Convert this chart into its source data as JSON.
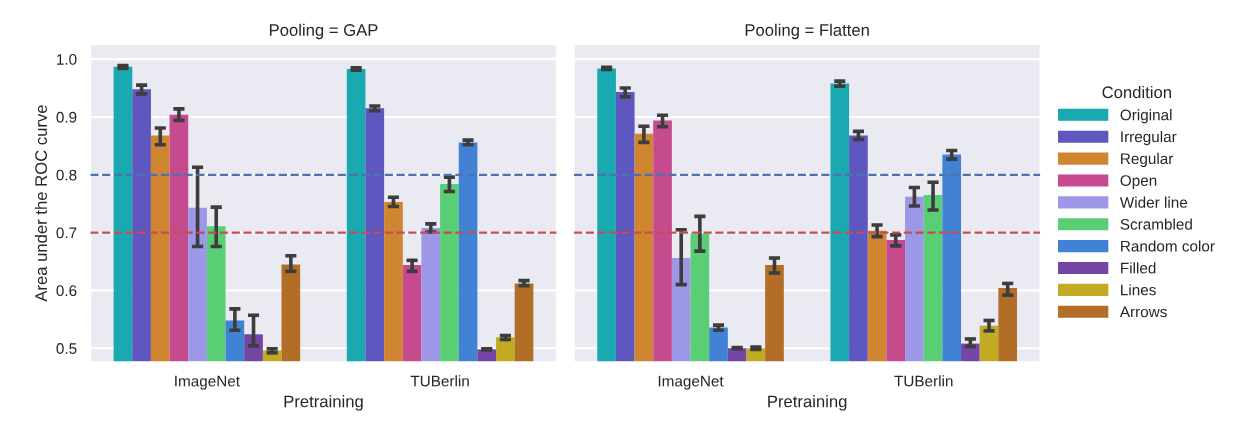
{
  "chart_data": [
    {
      "type": "bar",
      "title": "Pooling = GAP",
      "xlabel": "Pretraining",
      "ylabel": "Area under the ROC curve",
      "categories": [
        "ImageNet",
        "TUBerlin"
      ],
      "ylim": [
        0.476,
        1.026
      ],
      "yticks": [
        {
          "value": 0.5,
          "label": "0.5"
        },
        {
          "value": 0.6,
          "label": "0.6"
        },
        {
          "value": 0.7,
          "label": "0.7"
        },
        {
          "value": 0.8,
          "label": "0.8"
        },
        {
          "value": 0.9,
          "label": "0.9"
        },
        {
          "value": 1.0,
          "label": "1.0"
        }
      ],
      "grid": "y",
      "legend": false,
      "ref_lines": [
        {
          "axis": "y",
          "value": 0.8,
          "color": "#4c72b0",
          "line_style": "dashed"
        },
        {
          "axis": "y",
          "value": 0.7,
          "color": "#c44e52",
          "line_style": "dashed"
        }
      ],
      "series": [
        {
          "color": "#1aa9b0",
          "values": [
            0.987,
            0.983
          ],
          "errors": [
            [
              0.984,
              0.989
            ],
            [
              0.981,
              0.985
            ]
          ]
        },
        {
          "color": "#5f57c0",
          "values": [
            0.948,
            0.915
          ],
          "errors": [
            [
              0.94,
              0.955
            ],
            [
              0.911,
              0.919
            ]
          ]
        },
        {
          "color": "#d08530",
          "values": [
            0.868,
            0.753
          ],
          "errors": [
            [
              0.852,
              0.881
            ],
            [
              0.745,
              0.761
            ]
          ]
        },
        {
          "color": "#c54a8e",
          "values": [
            0.904,
            0.644
          ],
          "errors": [
            [
              0.894,
              0.914
            ],
            [
              0.633,
              0.652
            ]
          ]
        },
        {
          "color": "#9d97e8",
          "values": [
            0.743,
            0.708
          ],
          "errors": [
            [
              0.676,
              0.813
            ],
            [
              0.701,
              0.715
            ]
          ]
        },
        {
          "color": "#5ace74",
          "values": [
            0.711,
            0.784
          ],
          "errors": [
            [
              0.676,
              0.744
            ],
            [
              0.771,
              0.796
            ]
          ]
        },
        {
          "color": "#4182d4",
          "values": [
            0.548,
            0.856
          ],
          "errors": [
            [
              0.531,
              0.568
            ],
            [
              0.852,
              0.86
            ]
          ]
        },
        {
          "color": "#7545a3",
          "values": [
            0.524,
            0.498
          ],
          "errors": [
            [
              0.504,
              0.557
            ],
            [
              0.497,
              0.499
            ]
          ]
        },
        {
          "color": "#c2ab22",
          "values": [
            0.496,
            0.519
          ],
          "errors": [
            [
              0.492,
              0.499
            ],
            [
              0.515,
              0.522
            ]
          ]
        },
        {
          "color": "#b26d26",
          "values": [
            0.645,
            0.612
          ],
          "errors": [
            [
              0.633,
              0.66
            ],
            [
              0.608,
              0.617
            ]
          ]
        }
      ]
    },
    {
      "type": "bar",
      "title": "Pooling = Flatten",
      "xlabel": "Pretraining",
      "legend_title": "Condition",
      "categories": [
        "ImageNet",
        "TUBerlin"
      ],
      "ylim": [
        0.476,
        1.026
      ],
      "tick_labels": "x",
      "grid": "y",
      "legend": "right",
      "ref_lines": [
        {
          "axis": "y",
          "value": 0.8,
          "color": "#4c72b0",
          "line_style": "dashed"
        },
        {
          "axis": "y",
          "value": 0.7,
          "color": "#c44e52",
          "line_style": "dashed"
        }
      ],
      "series": [
        {
          "name": "Original",
          "color": "#1aa9b0",
          "values": [
            0.984,
            0.958
          ],
          "errors": [
            [
              0.982,
              0.986
            ],
            [
              0.953,
              0.962
            ]
          ]
        },
        {
          "name": "Irregular",
          "color": "#5f57c0",
          "values": [
            0.943,
            0.868
          ],
          "errors": [
            [
              0.935,
              0.95
            ],
            [
              0.861,
              0.875
            ]
          ]
        },
        {
          "name": "Regular",
          "color": "#d08530",
          "values": [
            0.871,
            0.703
          ],
          "errors": [
            [
              0.856,
              0.884
            ],
            [
              0.693,
              0.713
            ]
          ]
        },
        {
          "name": "Open",
          "color": "#c54a8e",
          "values": [
            0.894,
            0.687
          ],
          "errors": [
            [
              0.883,
              0.903
            ],
            [
              0.677,
              0.696
            ]
          ]
        },
        {
          "name": "Wider line",
          "color": "#9d97e8",
          "values": [
            0.656,
            0.762
          ],
          "errors": [
            [
              0.61,
              0.705
            ],
            [
              0.746,
              0.778
            ]
          ]
        },
        {
          "name": "Scrambled",
          "color": "#5ace74",
          "values": [
            0.698,
            0.765
          ],
          "errors": [
            [
              0.668,
              0.728
            ],
            [
              0.739,
              0.787
            ]
          ]
        },
        {
          "name": "Random color",
          "color": "#4182d4",
          "values": [
            0.536,
            0.835
          ],
          "errors": [
            [
              0.531,
              0.54
            ],
            [
              0.827,
              0.842
            ]
          ]
        },
        {
          "name": "Filled",
          "color": "#7545a3",
          "values": [
            0.5,
            0.508
          ],
          "errors": [
            [
              0.499,
              0.501
            ],
            [
              0.503,
              0.516
            ]
          ]
        },
        {
          "name": "Lines",
          "color": "#c2ab22",
          "values": [
            0.5,
            0.539
          ],
          "errors": [
            [
              0.498,
              0.502
            ],
            [
              0.53,
              0.548
            ]
          ]
        },
        {
          "name": "Arrows",
          "color": "#b26d26",
          "values": [
            0.644,
            0.604
          ],
          "errors": [
            [
              0.63,
              0.656
            ],
            [
              0.592,
              0.612
            ]
          ]
        }
      ]
    }
  ]
}
